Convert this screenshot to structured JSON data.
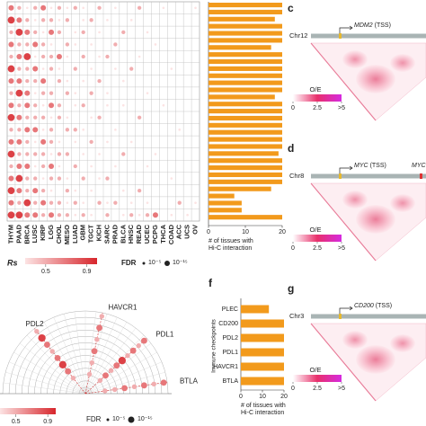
{
  "chart_data": [
    {
      "type": "dot_matrix",
      "categories": [
        "THYM",
        "PAAD",
        "BRCA",
        "LUSC",
        "KIRP",
        "LGG",
        "CHOL",
        "MESO",
        "LUAD",
        "GBM",
        "TGCT",
        "KICH",
        "SARC",
        "PRAD",
        "BLCA",
        "HNSC",
        "READ",
        "UCEC",
        "PCPG",
        "THCA",
        "COAD",
        "ACC",
        "UCS",
        "OV"
      ],
      "values": [
        [
          0.7,
          0.5,
          0.3,
          0.5,
          0.7,
          0.3,
          0.5,
          0.3,
          0.5,
          0.3,
          null,
          0.5,
          null,
          0.3,
          null,
          null,
          0.5,
          null,
          null,
          0.3,
          null,
          null,
          null,
          0.3
        ],
        [
          0.9,
          0.7,
          0.5,
          0.3,
          0.5,
          0.5,
          0.3,
          0.5,
          null,
          0.3,
          0.5,
          null,
          0.3,
          null,
          null,
          0.3,
          null,
          null,
          null,
          null,
          null,
          null,
          null,
          null
        ],
        [
          0.5,
          0.9,
          0.7,
          0.5,
          0.3,
          0.7,
          0.5,
          null,
          0.3,
          0.5,
          null,
          0.3,
          null,
          null,
          0.5,
          null,
          null,
          0.3,
          null,
          null,
          null,
          null,
          null,
          null
        ],
        [
          0.7,
          0.5,
          0.5,
          0.7,
          0.5,
          0.3,
          null,
          0.5,
          0.3,
          null,
          0.3,
          null,
          null,
          0.5,
          null,
          null,
          null,
          null,
          0.3,
          null,
          null,
          null,
          null,
          null
        ],
        [
          0.5,
          0.7,
          0.9,
          0.3,
          0.5,
          0.5,
          0.7,
          0.3,
          null,
          0.5,
          null,
          0.3,
          0.5,
          null,
          null,
          null,
          0.3,
          null,
          null,
          null,
          null,
          null,
          null,
          null
        ],
        [
          0.9,
          0.5,
          0.5,
          0.7,
          0.3,
          0.5,
          0.3,
          null,
          0.5,
          null,
          0.3,
          null,
          null,
          0.3,
          null,
          0.5,
          null,
          null,
          null,
          null,
          0.3,
          null,
          null,
          null
        ],
        [
          0.7,
          0.7,
          0.5,
          0.5,
          0.7,
          null,
          0.5,
          0.3,
          null,
          0.3,
          null,
          0.5,
          null,
          null,
          0.3,
          null,
          null,
          null,
          null,
          null,
          null,
          null,
          null,
          null
        ],
        [
          0.5,
          0.9,
          0.7,
          0.3,
          0.5,
          0.5,
          null,
          0.5,
          0.3,
          null,
          0.5,
          null,
          0.3,
          null,
          null,
          null,
          null,
          0.3,
          null,
          null,
          null,
          null,
          null,
          null
        ],
        [
          0.7,
          0.5,
          0.7,
          0.5,
          0.3,
          0.7,
          0.5,
          null,
          0.3,
          0.5,
          null,
          null,
          0.3,
          null,
          0.3,
          null,
          null,
          null,
          null,
          0.3,
          null,
          null,
          null,
          null
        ],
        [
          0.9,
          0.7,
          0.5,
          0.5,
          0.5,
          0.3,
          0.5,
          0.3,
          null,
          null,
          0.3,
          0.5,
          null,
          null,
          null,
          null,
          0.5,
          null,
          null,
          null,
          null,
          null,
          null,
          null
        ],
        [
          0.5,
          0.5,
          0.7,
          0.7,
          0.3,
          0.5,
          null,
          0.5,
          0.5,
          0.3,
          null,
          null,
          null,
          0.3,
          null,
          null,
          null,
          null,
          null,
          null,
          null,
          0.3,
          null,
          null
        ],
        [
          0.7,
          0.7,
          0.5,
          0.3,
          0.7,
          0.5,
          0.3,
          null,
          0.3,
          null,
          0.5,
          null,
          0.3,
          null,
          null,
          0.3,
          null,
          null,
          null,
          null,
          null,
          null,
          null,
          null
        ],
        [
          0.9,
          0.5,
          0.5,
          0.5,
          0.5,
          0.3,
          0.5,
          0.5,
          null,
          0.3,
          null,
          0.3,
          null,
          null,
          0.5,
          null,
          null,
          null,
          0.3,
          null,
          null,
          null,
          null,
          null
        ],
        [
          0.5,
          0.7,
          0.7,
          0.3,
          0.5,
          0.7,
          0.3,
          null,
          0.5,
          null,
          0.3,
          null,
          null,
          0.3,
          null,
          null,
          null,
          0.3,
          null,
          null,
          null,
          null,
          null,
          null
        ],
        [
          0.7,
          0.9,
          0.5,
          0.5,
          0.3,
          0.5,
          0.5,
          0.3,
          null,
          0.5,
          null,
          0.3,
          0.5,
          null,
          null,
          null,
          null,
          null,
          null,
          null,
          0.3,
          null,
          null,
          null
        ],
        [
          0.9,
          0.7,
          0.5,
          0.7,
          0.5,
          0.3,
          null,
          0.5,
          0.3,
          null,
          0.3,
          null,
          null,
          null,
          0.3,
          null,
          0.5,
          null,
          null,
          null,
          null,
          null,
          null,
          null
        ],
        [
          0.7,
          0.5,
          0.9,
          0.5,
          0.7,
          0.5,
          0.5,
          0.3,
          0.5,
          0.3,
          null,
          0.5,
          0.3,
          0.5,
          null,
          0.3,
          null,
          0.3,
          null,
          null,
          null,
          0.5,
          null,
          0.3
        ],
        [
          0.9,
          0.9,
          0.7,
          0.7,
          0.5,
          0.7,
          0.5,
          0.5,
          0.3,
          0.5,
          0.3,
          null,
          0.5,
          null,
          0.3,
          0.5,
          0.3,
          0.5,
          0.7,
          null,
          0.3,
          null,
          0.3,
          null
        ]
      ],
      "clim": [
        0.3,
        1.0
      ],
      "colorbar_label": "Rs",
      "colorbar_ticks": [
        0.5,
        0.9
      ],
      "colors": [
        "#fce3e3",
        "#d7262c"
      ],
      "size_label": "FDR",
      "size_legend": [
        "10⁻⁵",
        "10⁻¹⁵"
      ]
    },
    {
      "type": "barh",
      "color": "#f29a1c",
      "values": [
        20,
        20,
        18,
        20,
        20,
        20,
        17,
        20,
        20,
        20,
        20,
        20,
        20,
        18,
        20,
        20,
        20,
        20,
        20,
        20,
        20,
        19,
        20,
        20,
        20,
        20,
        17,
        7,
        9,
        9,
        20
      ],
      "xlim": [
        0,
        20
      ],
      "xticks": [
        0,
        10,
        20
      ],
      "xlabel": [
        "# of tissues with",
        "Hi-C interaction"
      ]
    },
    {
      "type": "barh",
      "color": "#f29a1c",
      "panel": "f",
      "ylabel": "Immune checkpoints",
      "categories": [
        "PLEC",
        "CD200",
        "PDL2",
        "PDL1",
        "HAVCR1",
        "BTLA"
      ],
      "values": [
        13,
        20,
        20,
        20,
        20,
        20
      ],
      "xlim": [
        0,
        20
      ],
      "xticks": [
        0,
        10,
        20
      ],
      "xlabel": [
        "# of tissues with",
        "Hi-C interaction"
      ]
    },
    {
      "type": "polar",
      "series": [
        {
          "name": "PDL2",
          "values": [
            0.5,
            0.7,
            0.9,
            0.7,
            0.5,
            0.7,
            0.9,
            0.5
          ]
        },
        {
          "name": "HAVCR1",
          "values": [
            0.5,
            0.5,
            0.7,
            0.5,
            0.7,
            0.5
          ]
        },
        {
          "name": "PDL1",
          "values": [
            0.5,
            0.7,
            0.5,
            0.7,
            0.9,
            0.5,
            0.7,
            0.5,
            0.7
          ]
        },
        {
          "name": "BTLA",
          "values": [
            0.5,
            0.5,
            0.7,
            0.5,
            0.7,
            0.5,
            0.7
          ]
        }
      ],
      "clim": [
        0.3,
        1.0
      ],
      "colorbar_ticks": [
        0.5,
        0.9
      ],
      "colors": [
        "#fce3e3",
        "#d7262c"
      ],
      "size_label": "FDR",
      "size_legend": [
        "10⁻⁵",
        "10⁻¹⁵"
      ]
    }
  ],
  "hic_panels": [
    {
      "label": "c",
      "chrom": "Chr12",
      "gene": "MDM2",
      "suffix": "(TSS)",
      "cbar_label": "O/E",
      "cbar_ticks": [
        0,
        2.5,
        {
          "value": 5,
          "label": ">5"
        }
      ]
    },
    {
      "label": "d",
      "chrom": "Chr8",
      "gene": "MYC",
      "suffix": "(TSS)",
      "gene2": "MYC",
      "cbar_label": "O/E",
      "cbar_ticks": [
        0,
        2.5,
        {
          "value": 5,
          "label": ">5"
        }
      ]
    },
    {
      "label": "g",
      "chrom": "Chr3",
      "gene": "CD200",
      "suffix": "(TSS)",
      "cbar_label": "O/E",
      "cbar_ticks": [
        0,
        2.5,
        {
          "value": 5,
          "label": ">5"
        }
      ]
    }
  ]
}
